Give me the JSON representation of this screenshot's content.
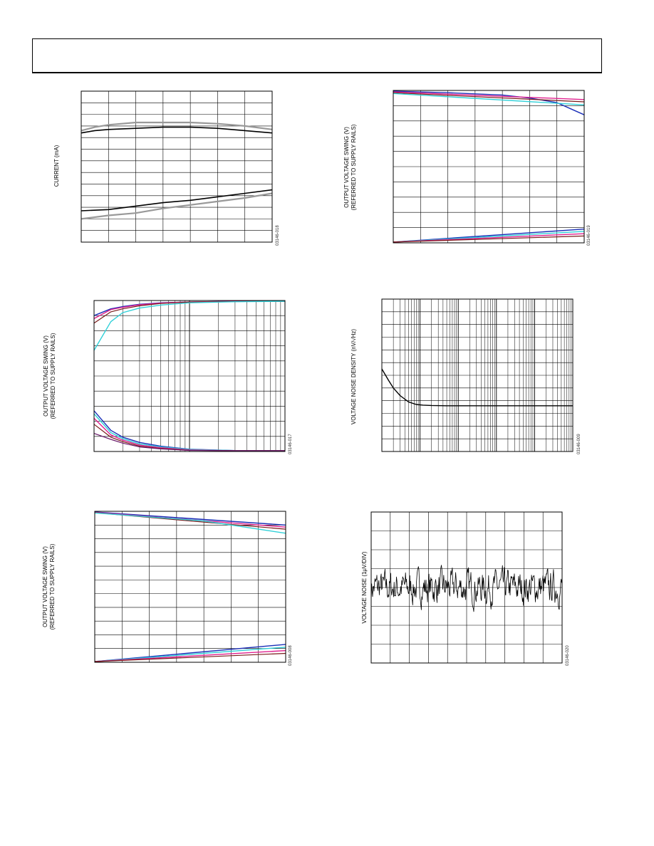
{
  "charts": [
    {
      "figure_id": "03146-018",
      "ylabel_lines": [
        "CURRENT (mA)"
      ],
      "chart_data": {
        "type": "line",
        "x_scale": "linear",
        "x_divisions": 7,
        "y_divisions": 13,
        "xlim": [
          0,
          7
        ],
        "ylim": [
          0,
          13
        ],
        "series": [
          {
            "color": "#000000",
            "width": 1.6,
            "x": [
              0,
              0.5,
              1,
              2,
              3,
              4,
              5,
              6,
              7
            ],
            "y": [
              9.4,
              9.6,
              9.7,
              9.8,
              9.9,
              9.9,
              9.8,
              9.6,
              9.4
            ]
          },
          {
            "color": "#999999",
            "width": 2.2,
            "x": [
              0,
              0.5,
              1,
              2,
              3,
              4,
              5,
              6,
              7
            ],
            "y": [
              9.6,
              9.9,
              10.1,
              10.3,
              10.3,
              10.3,
              10.2,
              10.0,
              9.7
            ]
          },
          {
            "color": "#000000",
            "width": 1.6,
            "x": [
              0,
              1,
              2,
              3,
              4,
              5,
              6,
              7
            ],
            "y": [
              2.7,
              2.8,
              3.1,
              3.4,
              3.6,
              3.9,
              4.2,
              4.5
            ]
          },
          {
            "color": "#999999",
            "width": 2.2,
            "x": [
              0,
              1,
              2,
              3,
              4,
              5,
              6,
              7
            ],
            "y": [
              2.0,
              2.3,
              2.5,
              2.9,
              3.2,
              3.5,
              3.8,
              4.2
            ]
          }
        ]
      }
    },
    {
      "figure_id": "03146-019",
      "ylabel_lines": [
        "OUTPUT VOLTAGE SWING (V)",
        "(REFERRED TO SUPPLY RAILS)"
      ],
      "chart_data": {
        "type": "line",
        "x_scale": "linear",
        "x_divisions": 7,
        "y_divisions": 10,
        "xlim": [
          0,
          7
        ],
        "ylim": [
          0,
          10
        ],
        "series": [
          {
            "color": "#1a2fb8",
            "width": 1.4,
            "x": [
              0,
              2,
              4,
              5,
              6,
              6.5,
              7
            ],
            "y": [
              9.95,
              9.85,
              9.7,
              9.5,
              9.2,
              8.8,
              8.4
            ]
          },
          {
            "color": "#e0208e",
            "width": 1.4,
            "x": [
              0,
              7
            ],
            "y": [
              9.9,
              9.4
            ]
          },
          {
            "color": "#7a1a1a",
            "width": 1.2,
            "x": [
              0,
              7
            ],
            "y": [
              9.85,
              9.25
            ]
          },
          {
            "color": "#30d0d8",
            "width": 1.4,
            "x": [
              0,
              7
            ],
            "y": [
              9.8,
              9.05
            ]
          },
          {
            "color": "#1a2fb8",
            "width": 1.4,
            "x": [
              0,
              7
            ],
            "y": [
              0.05,
              0.9
            ]
          },
          {
            "color": "#30d0d8",
            "width": 1.4,
            "x": [
              0,
              7
            ],
            "y": [
              0.05,
              0.75
            ]
          },
          {
            "color": "#e0208e",
            "width": 1.4,
            "x": [
              0,
              7
            ],
            "y": [
              0.05,
              0.6
            ]
          },
          {
            "color": "#7a1a1a",
            "width": 1.2,
            "x": [
              0,
              7
            ],
            "y": [
              0.05,
              0.45
            ]
          }
        ]
      }
    },
    {
      "figure_id": "03146-017",
      "ylabel_lines": [
        "OUTPUT VOLTAGE SWING (V)",
        "(REFERRED TO SUPPLY RAILS)"
      ],
      "chart_data": {
        "type": "line",
        "x_scale": "log",
        "x_decades": 2,
        "y_divisions": 10,
        "xlim": [
          1,
          100
        ],
        "ylim": [
          0,
          10
        ],
        "series": [
          {
            "color": "#1a2fb8",
            "width": 1.4,
            "x": [
              1,
              1.5,
              2,
              3,
              5,
              10,
              30,
              100
            ],
            "y": [
              9.0,
              9.45,
              9.6,
              9.75,
              9.85,
              9.9,
              9.95,
              9.95
            ]
          },
          {
            "color": "#e0208e",
            "width": 1.4,
            "x": [
              1,
              1.5,
              2,
              3,
              5,
              10,
              30,
              100
            ],
            "y": [
              8.8,
              9.4,
              9.55,
              9.72,
              9.83,
              9.9,
              9.95,
              9.95
            ]
          },
          {
            "color": "#7a1a1a",
            "width": 1.2,
            "x": [
              1,
              1.5,
              2,
              3,
              5,
              10,
              30,
              100
            ],
            "y": [
              8.5,
              9.25,
              9.45,
              9.65,
              9.8,
              9.9,
              9.93,
              9.95
            ]
          },
          {
            "color": "#30d0d8",
            "width": 1.4,
            "x": [
              1,
              1.5,
              2,
              3,
              5,
              10,
              30,
              100
            ],
            "y": [
              6.7,
              8.6,
              9.2,
              9.5,
              9.7,
              9.85,
              9.92,
              9.95
            ]
          },
          {
            "color": "#1a2fb8",
            "width": 1.4,
            "x": [
              1,
              1.5,
              2,
              3,
              5,
              10,
              30,
              100
            ],
            "y": [
              2.7,
              1.4,
              0.95,
              0.6,
              0.35,
              0.15,
              0.06,
              0.05
            ]
          },
          {
            "color": "#30d0d8",
            "width": 1.4,
            "x": [
              1,
              1.5,
              2,
              3,
              5,
              10,
              30,
              100
            ],
            "y": [
              2.5,
              1.25,
              0.85,
              0.5,
              0.3,
              0.13,
              0.06,
              0.05
            ]
          },
          {
            "color": "#e0208e",
            "width": 1.4,
            "x": [
              1,
              1.5,
              2,
              3,
              5,
              10,
              30,
              100
            ],
            "y": [
              2.2,
              1.1,
              0.75,
              0.42,
              0.25,
              0.1,
              0.05,
              0.05
            ]
          },
          {
            "color": "#7a1a1a",
            "width": 1.2,
            "x": [
              1,
              1.5,
              2,
              3,
              5,
              10,
              30,
              100
            ],
            "y": [
              1.8,
              0.95,
              0.65,
              0.35,
              0.2,
              0.08,
              0.05,
              0.05
            ]
          },
          {
            "color": "#6a1a6a",
            "width": 1.2,
            "x": [
              1,
              1.5,
              2,
              3,
              5,
              10,
              30,
              100
            ],
            "y": [
              1.2,
              0.8,
              0.55,
              0.3,
              0.17,
              0.07,
              0.05,
              0.05
            ]
          }
        ]
      }
    },
    {
      "figure_id": "03146-009",
      "ylabel_lines": [
        "VOLTAGE NOISE DENSITY (nV/√Hz)"
      ],
      "chart_data": {
        "type": "line",
        "x_scale": "log",
        "x_decades": 5,
        "y_divisions": 12,
        "xlim": [
          1,
          100000
        ],
        "ylim": [
          0,
          12
        ],
        "series": [
          {
            "color": "#000000",
            "width": 1.4,
            "x": [
              1,
              1.5,
              2,
              3,
              5,
              8,
              12,
              20,
              50,
              150,
              400,
              100000
            ],
            "y": [
              6.5,
              5.6,
              5.0,
              4.4,
              3.9,
              3.7,
              3.65,
              3.62,
              3.6,
              3.6,
              3.6,
              3.6
            ]
          }
        ]
      }
    },
    {
      "figure_id": "03146-008",
      "ylabel_lines": [
        "OUTPUT VOLTAGE SWING (V)",
        "(REFERRED TO SUPPLY RAILS)"
      ],
      "chart_data": {
        "type": "line",
        "x_scale": "linear",
        "x_divisions": 7,
        "y_divisions": 11,
        "xlim": [
          0,
          7
        ],
        "ylim": [
          0,
          11
        ],
        "series": [
          {
            "color": "#1a2fb8",
            "width": 1.4,
            "x": [
              0,
              7
            ],
            "y": [
              10.95,
              10.0
            ]
          },
          {
            "color": "#e0208e",
            "width": 1.4,
            "x": [
              0,
              7
            ],
            "y": [
              10.92,
              9.85
            ]
          },
          {
            "color": "#7a1a1a",
            "width": 1.2,
            "x": [
              0,
              7
            ],
            "y": [
              10.9,
              9.7
            ]
          },
          {
            "color": "#30d0d8",
            "width": 1.4,
            "x": [
              0,
              4,
              7
            ],
            "y": [
              10.88,
              10.3,
              9.4
            ]
          },
          {
            "color": "#1a2fb8",
            "width": 1.4,
            "x": [
              0,
              7
            ],
            "y": [
              0.05,
              1.3
            ]
          },
          {
            "color": "#30d0d8",
            "width": 1.4,
            "x": [
              0,
              7
            ],
            "y": [
              0.05,
              1.1
            ]
          },
          {
            "color": "#e0208e",
            "width": 1.4,
            "x": [
              0,
              7
            ],
            "y": [
              0.05,
              0.85
            ]
          },
          {
            "color": "#7a1a1a",
            "width": 1.2,
            "x": [
              0,
              7
            ],
            "y": [
              0.05,
              0.65
            ]
          }
        ]
      }
    },
    {
      "figure_id": "03146-020",
      "ylabel_lines": [
        "VOLTAGE NOISE (1μV/DIV)"
      ],
      "chart_data": {
        "type": "line",
        "x_scale": "linear",
        "x_divisions": 10,
        "y_divisions": 8,
        "xlim": [
          0,
          10
        ],
        "ylim": [
          -4,
          4
        ],
        "noise": true,
        "noise_center": 0,
        "noise_amplitude": 0.75,
        "noise_points": 400,
        "noise_seed": 7,
        "series": [
          {
            "color": "#000000",
            "width": 0.8
          }
        ]
      }
    }
  ]
}
